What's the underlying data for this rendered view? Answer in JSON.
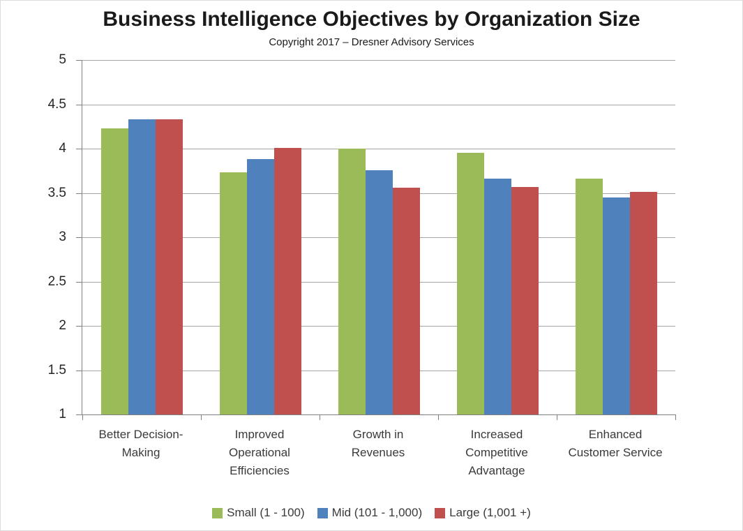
{
  "title": "Business Intelligence Objectives by Organization Size",
  "subtitle": "Copyright 2017 – Dresner Advisory Services",
  "chart_data": {
    "type": "bar",
    "title": "Business Intelligence Objectives by Organization Size",
    "subtitle": "Copyright 2017 – Dresner Advisory Services",
    "categories": [
      "Better Decision-Making",
      "Improved Operational Efficiencies",
      "Growth in Revenues",
      "Increased Competitive Advantage",
      "Enhanced Customer Service"
    ],
    "category_label_lines": [
      [
        "Better Decision-",
        "Making"
      ],
      [
        "Improved",
        "Operational",
        "Efficiencies"
      ],
      [
        "Growth in",
        "Revenues"
      ],
      [
        "Increased",
        "Competitive",
        "Advantage"
      ],
      [
        "Enhanced",
        "Customer Service"
      ]
    ],
    "series": [
      {
        "name": "Small (1 - 100)",
        "color": "#9BBB59",
        "values": [
          4.23,
          3.73,
          4.0,
          3.95,
          3.66
        ]
      },
      {
        "name": "Mid (101 - 1,000)",
        "color": "#4F81BD",
        "values": [
          4.33,
          3.88,
          3.76,
          3.66,
          3.45
        ]
      },
      {
        "name": "Large (1,001 +)",
        "color": "#C0504D",
        "values": [
          4.33,
          4.01,
          3.56,
          3.57,
          3.51
        ]
      }
    ],
    "y_axis": {
      "min": 1,
      "max": 5,
      "step": 0.5,
      "ticks": [
        5,
        4.5,
        4,
        3.5,
        3,
        2.5,
        2,
        1.5,
        1
      ],
      "tick_labels": [
        "5",
        "4.5",
        "4",
        "3.5",
        "3",
        "2.5",
        "2",
        "1.5",
        "1"
      ]
    },
    "grid": true,
    "legend_position": "bottom",
    "colors": {
      "axis": "#7f7f7f",
      "gridline": "#a6a6a6",
      "title_text": "#1a1a1a",
      "label_text": "#3a3a3a"
    }
  }
}
